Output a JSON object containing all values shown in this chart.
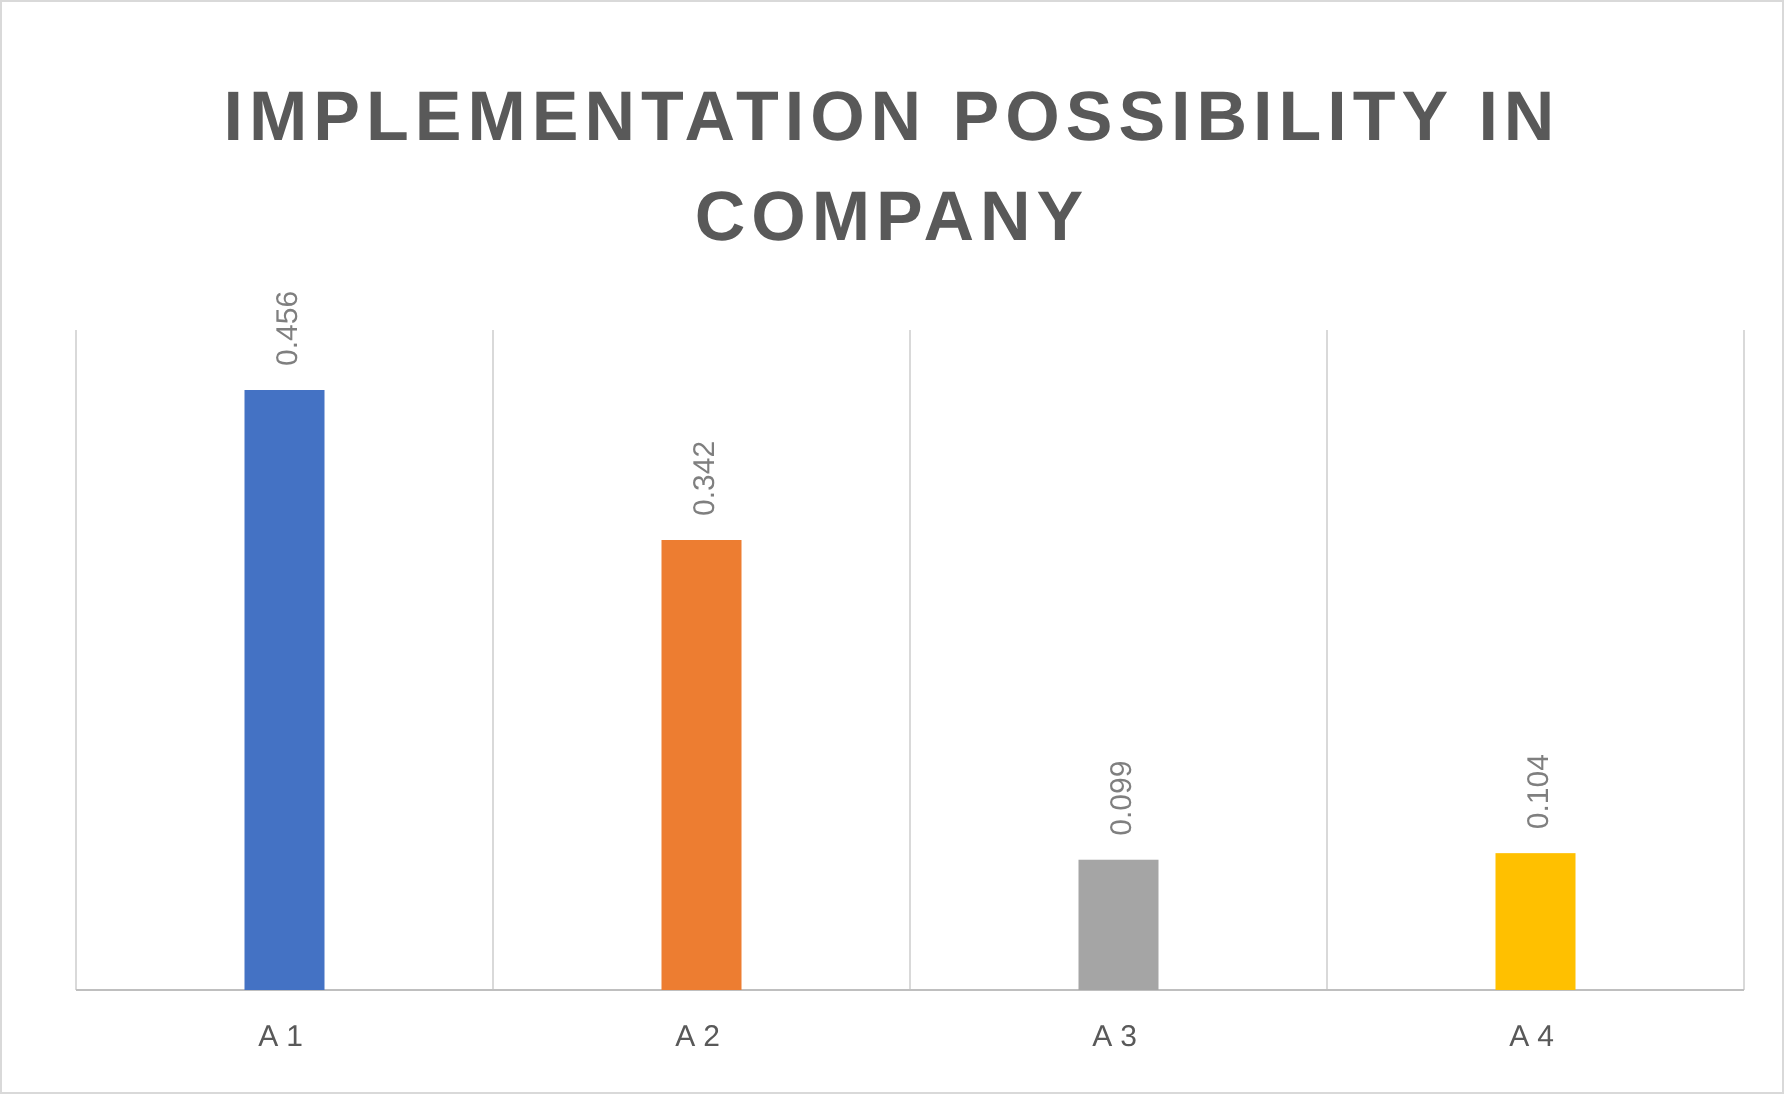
{
  "chart_data": {
    "type": "bar",
    "title": "IMPLEMENTATION POSSIBILITY IN COMPANY",
    "categories": [
      "A1",
      "A2",
      "A3",
      "A4"
    ],
    "values": [
      0.456,
      0.342,
      0.099,
      0.104
    ],
    "colors": [
      "#4472c4",
      "#ed7d31",
      "#a5a5a5",
      "#ffc000"
    ],
    "data_labels": true,
    "grid": "x"
  }
}
